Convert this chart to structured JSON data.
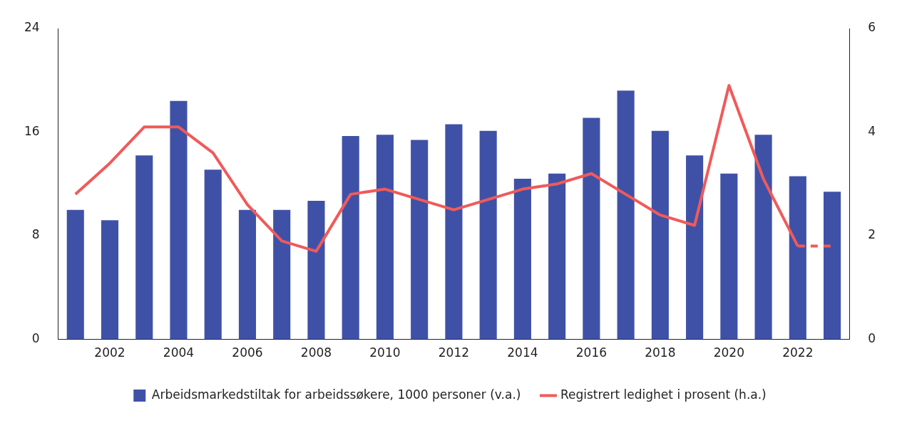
{
  "chart_data": {
    "type": "bar",
    "categories": [
      null,
      "2002",
      null,
      "2004",
      null,
      "2006",
      null,
      "2008",
      null,
      "2010",
      null,
      "2012",
      null,
      "2014",
      null,
      "2016",
      null,
      "2018",
      null,
      "2020",
      null,
      "2022",
      null
    ],
    "series": [
      {
        "name": "Arbeidsmarkedstiltak for arbeidssøkere, 1000 personer (v.a.)",
        "color": "#3f51a7",
        "values": [
          10.0,
          9.2,
          14.2,
          18.4,
          13.1,
          10.0,
          10.0,
          10.7,
          15.7,
          15.8,
          15.4,
          16.6,
          16.1,
          12.4,
          12.8,
          17.1,
          19.2,
          16.1,
          14.2,
          12.8,
          15.8,
          12.6,
          11.4
        ]
      },
      {
        "name": "Registrert ledighet i prosent (h.a.)",
        "type": "line",
        "axis": "y2",
        "color": "#f05a5a",
        "line_style": "solid",
        "values": [
          2.8,
          3.4,
          4.1,
          4.1,
          3.6,
          2.6,
          1.9,
          1.7,
          2.8,
          2.9,
          2.7,
          2.5,
          2.7,
          2.9,
          3.0,
          3.2,
          2.8,
          2.4,
          2.2,
          4.9,
          3.1,
          1.8,
          null
        ]
      },
      {
        "type": "line",
        "axis": "y2",
        "color": "#f05a5a",
        "line_style": "dashed",
        "values": [
          null,
          null,
          null,
          null,
          null,
          null,
          null,
          null,
          null,
          null,
          null,
          null,
          null,
          null,
          null,
          null,
          null,
          null,
          null,
          null,
          null,
          1.8,
          1.8
        ]
      }
    ],
    "ylim": [
      0,
      24
    ],
    "yticks": [
      0,
      8,
      16,
      24
    ],
    "y2lim": [
      0,
      6
    ],
    "y2ticks": [
      0,
      2,
      4,
      6
    ],
    "grid": false,
    "legend": "bottom",
    "marker": "none"
  }
}
